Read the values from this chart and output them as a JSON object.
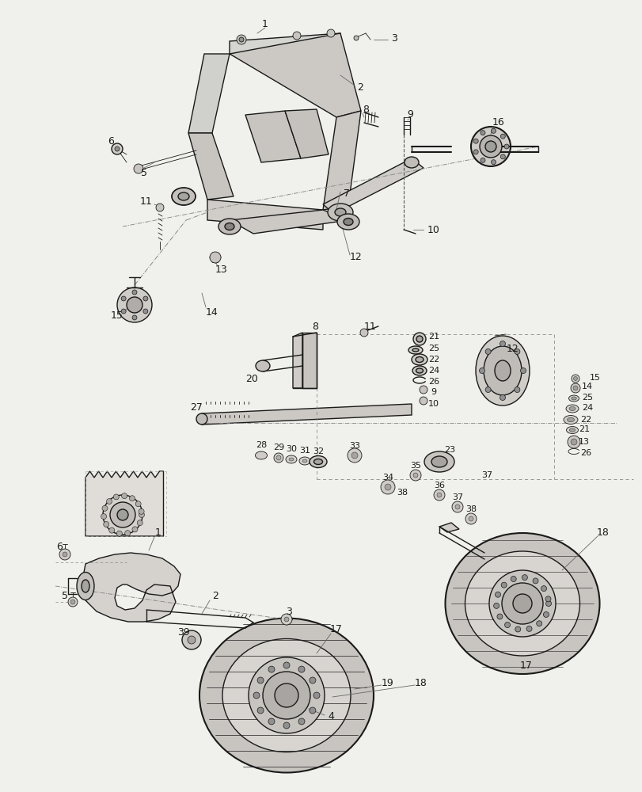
{
  "background_color": "#f0f0ec",
  "line_color": "#1a1a1a",
  "figsize": [
    8.12,
    10.0
  ],
  "dpi": 100
}
